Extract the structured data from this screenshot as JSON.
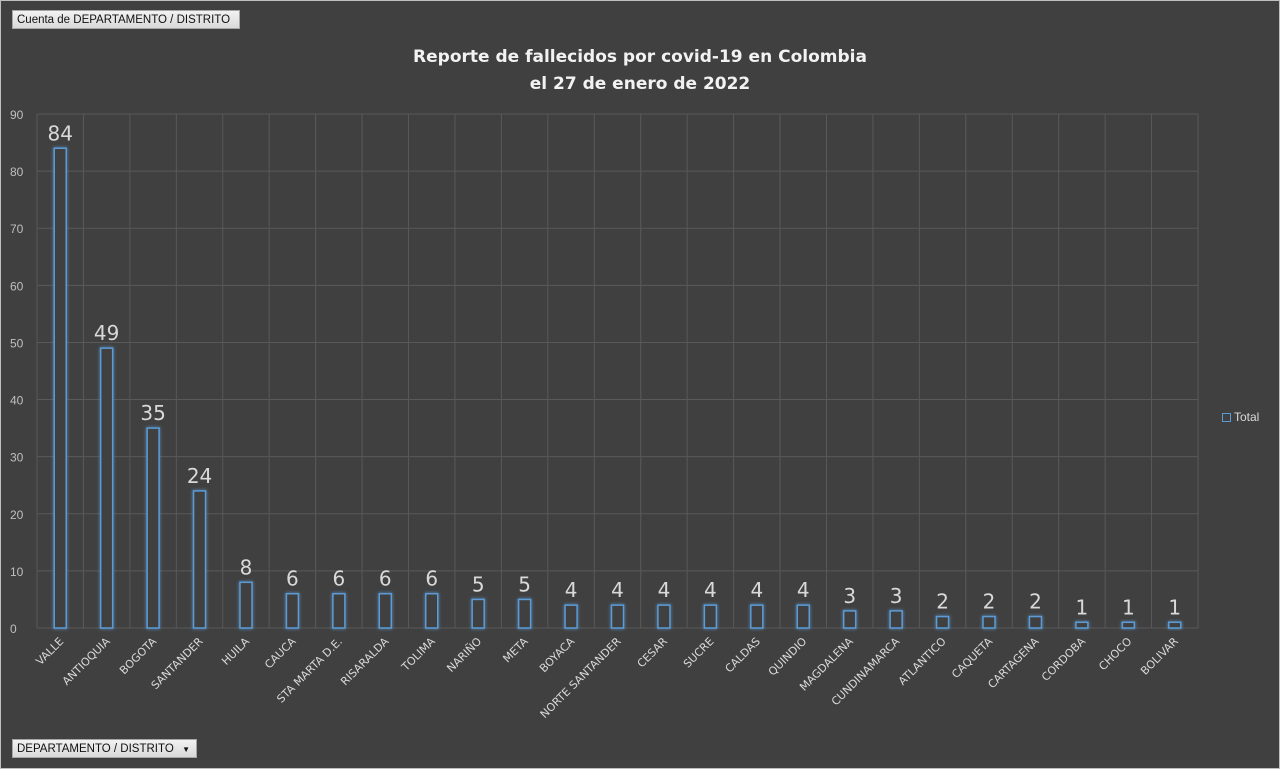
{
  "field_button": "Cuenta de DEPARTAMENTO / DISTRITO",
  "axis_dropdown": "DEPARTAMENTO / DISTRITO",
  "chart_data": {
    "type": "bar",
    "title_line1": "Reporte de fallecidos por covid-19 en Colombia",
    "title_line2": "el 27 de enero de 2022",
    "categories": [
      "VALLE",
      "ANTIOQUIA",
      "BOGOTA",
      "SANTANDER",
      "HUILA",
      "CAUCA",
      "STA MARTA D.E.",
      "RISARALDA",
      "TOLIMA",
      "NARIÑO",
      "META",
      "BOYACA",
      "NORTE SANTANDER",
      "CESAR",
      "SUCRE",
      "CALDAS",
      "QUINDIO",
      "MAGDALENA",
      "CUNDINAMARCA",
      "ATLANTICO",
      "CAQUETA",
      "CARTAGENA",
      "CORDOBA",
      "CHOCO",
      "BOLIVAR"
    ],
    "series": [
      {
        "name": "Total",
        "values": [
          84,
          49,
          35,
          24,
          8,
          6,
          6,
          6,
          6,
          5,
          5,
          4,
          4,
          4,
          4,
          4,
          4,
          3,
          3,
          2,
          2,
          2,
          1,
          1,
          1
        ]
      }
    ],
    "yticks": [
      "0",
      "10",
      "20",
      "30",
      "40",
      "50",
      "60",
      "70",
      "80",
      "90"
    ],
    "ylim": [
      0,
      90
    ],
    "grid": true,
    "legend_position": "right",
    "bar_color": "#5b9bd5"
  }
}
